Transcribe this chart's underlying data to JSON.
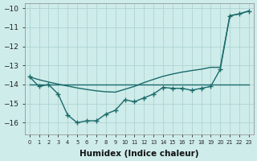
{
  "xlabel": "Humidex (Indice chaleur)",
  "bg_color": "#ceecea",
  "grid_color": "#aed4d2",
  "line_color": "#1a6b6b",
  "x": [
    0,
    1,
    2,
    3,
    4,
    5,
    6,
    7,
    8,
    9,
    10,
    11,
    12,
    13,
    14,
    15,
    16,
    17,
    18,
    19,
    20,
    21,
    22,
    23
  ],
  "curve_markers": [
    -13.6,
    -14.1,
    -14.0,
    -14.5,
    -15.6,
    -16.0,
    -15.9,
    -15.9,
    -15.55,
    -15.35,
    -14.8,
    -14.9,
    -14.7,
    -14.5,
    -14.15,
    -14.2,
    -14.2,
    -14.3,
    -14.2,
    -14.1,
    -13.2,
    -10.4,
    -10.3,
    -10.15
  ],
  "line_flat": [
    -14.0,
    -14.0,
    -14.0,
    -14.0,
    -14.0,
    -14.0,
    -14.0,
    -14.0,
    -14.0,
    -14.0,
    -14.0,
    -14.0,
    -14.0,
    -14.0,
    -14.0,
    -14.0,
    -14.0,
    -14.0,
    -14.0,
    -14.0,
    -14.0,
    -14.0,
    -14.0,
    -14.0
  ],
  "line_diag": [
    -13.6,
    -13.75,
    -13.87,
    -13.98,
    -14.08,
    -14.18,
    -14.26,
    -14.33,
    -14.38,
    -14.4,
    -14.25,
    -14.1,
    -13.9,
    -13.73,
    -13.57,
    -13.45,
    -13.35,
    -13.27,
    -13.2,
    -13.1,
    -13.1,
    -10.4,
    -10.3,
    -10.15
  ],
  "ylim": [
    -16.6,
    -9.75
  ],
  "xlim": [
    -0.5,
    23.5
  ],
  "yticks": [
    -16,
    -15,
    -14,
    -13,
    -12,
    -11,
    -10
  ],
  "xtick_labels": [
    "0",
    "1",
    "2",
    "3",
    "4",
    "5",
    "6",
    "7",
    "8",
    "9",
    "10",
    "11",
    "12",
    "13",
    "14",
    "15",
    "16",
    "17",
    "18",
    "19",
    "20",
    "21",
    "22",
    "23"
  ]
}
